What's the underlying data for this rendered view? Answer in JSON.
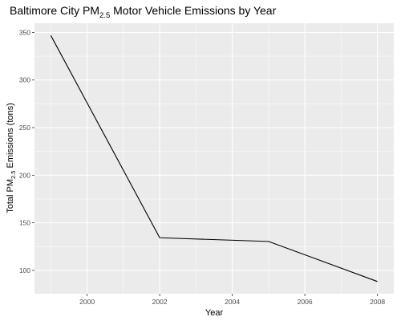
{
  "chart_data": {
    "type": "line",
    "title": {
      "prefix": "Baltimore City PM",
      "subscript": "2.5",
      "suffix": " Motor Vehicle Emissions by Year"
    },
    "xlabel": "Year",
    "ylabel": {
      "prefix": "Total PM",
      "subscript": "2.5",
      "suffix": " Emissions (tons)"
    },
    "x": [
      1999,
      2002,
      2005,
      2008
    ],
    "series": [
      {
        "values": [
          346.8,
          134.3,
          130.4,
          88.3
        ]
      }
    ],
    "xlim": [
      1998.55,
      2008.45
    ],
    "ylim": [
      75.5,
      359.6
    ],
    "x_ticks": [
      2000,
      2002,
      2004,
      2006,
      2008
    ],
    "y_ticks": [
      100,
      150,
      200,
      250,
      300,
      350
    ],
    "grid": true,
    "panel_background": "#ebebeb",
    "line_color": "#000000"
  }
}
